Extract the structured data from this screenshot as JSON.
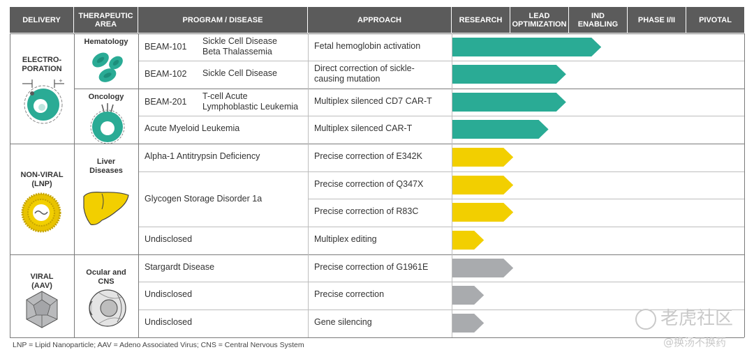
{
  "headers": {
    "delivery": "DELIVERY",
    "therapeutic_area": "THERAPEUTIC\nAREA",
    "program": "PROGRAM / DISEASE",
    "approach": "APPROACH",
    "stages": [
      "RESEARCH",
      "LEAD\nOPTIMIZATION",
      "IND\nENABLING",
      "PHASE I/II",
      "PIVOTAL"
    ]
  },
  "delivery_groups": [
    {
      "label": "ELECTRO-\nPORATION",
      "icon": "electroporation-cell-icon"
    },
    {
      "label": "NON-VIRAL\n(LNP)",
      "icon": "lipid-nanoparticle-icon"
    },
    {
      "label": "VIRAL\n(AAV)",
      "icon": "aav-capsid-icon"
    }
  ],
  "therapeutic_areas": [
    {
      "label": "Hematology",
      "icon": "red-blood-cells-icon"
    },
    {
      "label": "Oncology",
      "icon": "tumor-cell-icon"
    },
    {
      "label": "Liver\nDiseases",
      "icon": "liver-icon"
    },
    {
      "label": "Ocular and\nCNS",
      "icon": "eye-icon"
    }
  ],
  "merged_programs": [
    {
      "label": "Glycogen Storage Disorder 1a"
    }
  ],
  "chart_data": {
    "type": "bar",
    "stages": [
      "RESEARCH",
      "LEAD OPTIMIZATION",
      "IND ENABLING",
      "PHASE I/II",
      "PIVOTAL"
    ],
    "colors": {
      "electroporation": "#2aab95",
      "lnp": "#f2cf00",
      "aav": "#a9abae"
    },
    "rows": [
      {
        "code": "BEAM-101",
        "disease": "Sickle Cell Disease\nBeta Thalassemia",
        "approach": "Fetal hemoglobin activation",
        "progress": 2.55,
        "group": "electroporation"
      },
      {
        "code": "BEAM-102",
        "disease": "Sickle Cell Disease",
        "approach": "Direct correction of sickle-\ncausing mutation",
        "progress": 1.95,
        "group": "electroporation"
      },
      {
        "code": "BEAM-201",
        "disease": "T-cell Acute\nLymphoblastic Leukemia",
        "approach": "Multiplex silenced CD7 CAR-T",
        "progress": 1.95,
        "group": "electroporation"
      },
      {
        "code": "",
        "disease": "Acute Myeloid Leukemia",
        "approach": "Multiplex silenced CAR-T",
        "progress": 1.65,
        "group": "electroporation"
      },
      {
        "code": "",
        "disease": "Alpha-1 Antitrypsin Deficiency",
        "approach": "Precise correction of E342K",
        "progress": 1.05,
        "group": "lnp"
      },
      {
        "code": "",
        "disease": "",
        "approach": "Precise correction of Q347X",
        "progress": 1.05,
        "group": "lnp"
      },
      {
        "code": "",
        "disease": "",
        "approach": "Precise correction of R83C",
        "progress": 1.05,
        "group": "lnp"
      },
      {
        "code": "",
        "disease": "Undisclosed",
        "approach": "Multiplex editing",
        "progress": 0.55,
        "group": "lnp"
      },
      {
        "code": "",
        "disease": "Stargardt Disease",
        "approach": "Precise correction of G1961E",
        "progress": 1.05,
        "group": "aav"
      },
      {
        "code": "",
        "disease": "Undisclosed",
        "approach": "Precise correction",
        "progress": 0.55,
        "group": "aav"
      },
      {
        "code": "",
        "disease": "Undisclosed",
        "approach": "Gene silencing",
        "progress": 0.55,
        "group": "aav"
      }
    ]
  },
  "footnote": "LNP = Lipid Nanoparticle; AAV = Adeno Associated Virus; CNS = Central Nervous System",
  "watermark": {
    "brand": "老虎社区",
    "handle": "@换汤不换药"
  }
}
